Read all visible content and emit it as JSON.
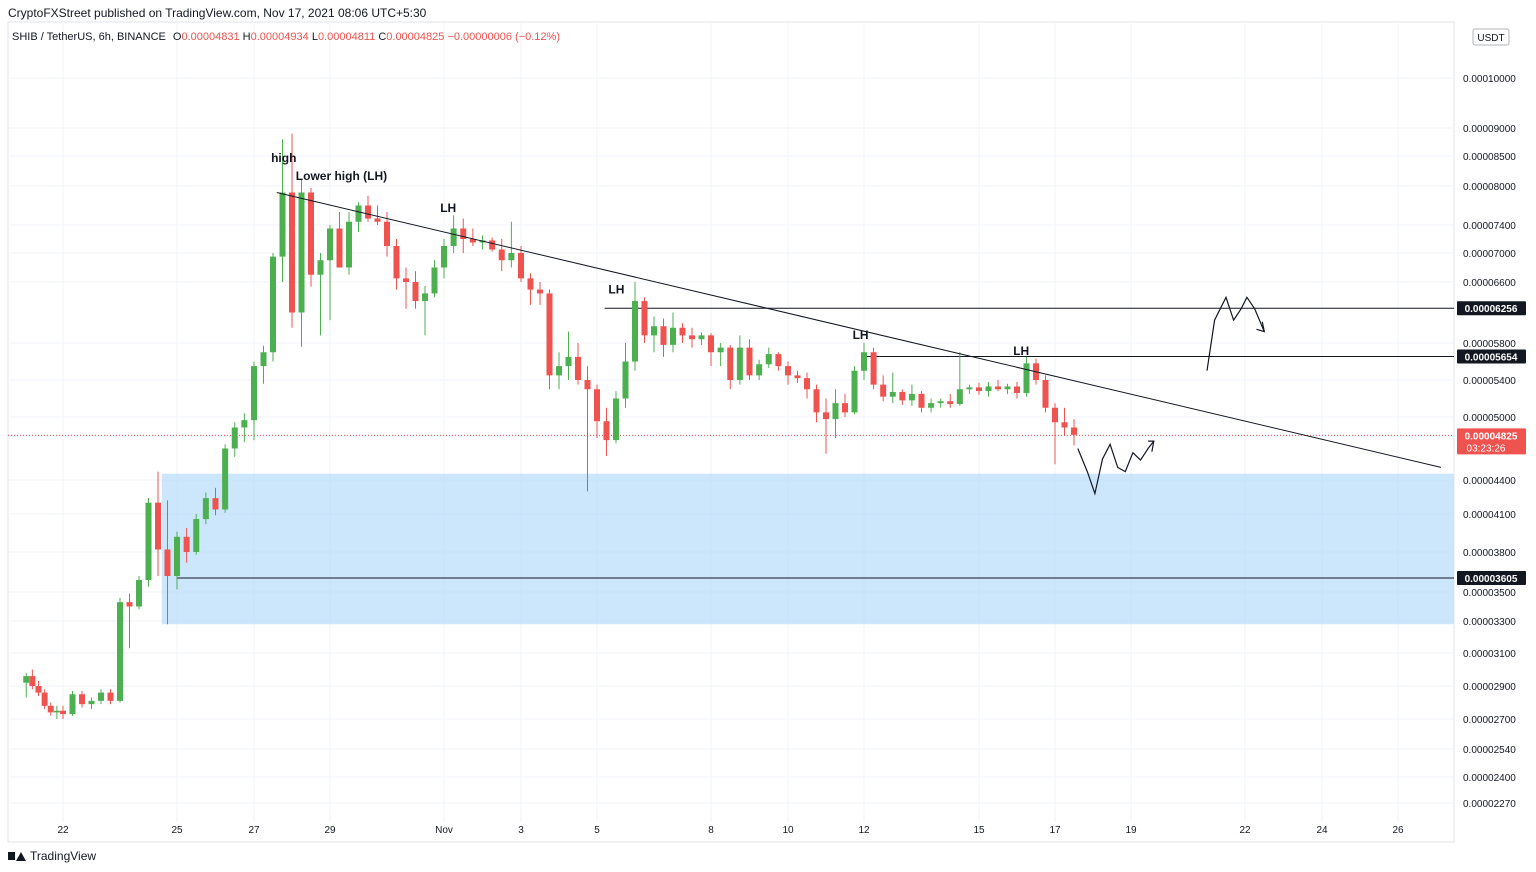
{
  "header": {
    "publisher": "CryptoFXStreet published on TradingView.com, Nov 17, 2021 08:06 UTC+5:30"
  },
  "ohlc": {
    "symbol": "SHIB / TetherUS, 6h, BINANCE",
    "o_label": "O",
    "o": "0.00004831",
    "h_label": "H",
    "h": "0.00004934",
    "l_label": "L",
    "l": "0.00004811",
    "c_label": "C",
    "c": "0.00004825",
    "change": "−0.00000006 (−0.12%)"
  },
  "footer": {
    "brand": "TradingView"
  },
  "colors": {
    "up": "#26a69a",
    "bull": "#4caf50",
    "down": "#ef5350",
    "zone": "#bbdefb",
    "line": "#131722"
  },
  "chart_data": {
    "type": "candlestick",
    "currency": "USDT",
    "y_ticks": [
      {
        "v": 0.0001,
        "label": "0.00010000"
      },
      {
        "v": 9e-05,
        "label": "0.00009000"
      },
      {
        "v": 8.5e-05,
        "label": "0.00008500"
      },
      {
        "v": 8e-05,
        "label": "0.00008000"
      },
      {
        "v": 7.4e-05,
        "label": "0.00007400"
      },
      {
        "v": 7e-05,
        "label": "0.00007000"
      },
      {
        "v": 6.6e-05,
        "label": "0.00006600"
      },
      {
        "v": 5.8e-05,
        "label": "0.00005800"
      },
      {
        "v": 5.4e-05,
        "label": "0.00005400"
      },
      {
        "v": 5e-05,
        "label": "0.00005000"
      },
      {
        "v": 4.4e-05,
        "label": "0.00004400"
      },
      {
        "v": 4.1e-05,
        "label": "0.00004100"
      },
      {
        "v": 3.8e-05,
        "label": "0.00003800"
      },
      {
        "v": 3.5e-05,
        "label": "0.00003500"
      },
      {
        "v": 3.3e-05,
        "label": "0.00003300"
      },
      {
        "v": 3.1e-05,
        "label": "0.00003100"
      },
      {
        "v": 2.9e-05,
        "label": "0.00002900"
      },
      {
        "v": 2.7e-05,
        "label": "0.00002700"
      },
      {
        "v": 2.54e-05,
        "label": "0.00002540"
      },
      {
        "v": 2.4e-05,
        "label": "0.00002400"
      },
      {
        "v": 2.27e-05,
        "label": "0.00002270"
      }
    ],
    "x_ticks": [
      {
        "t": 22,
        "label": "22"
      },
      {
        "t": 25,
        "label": "25"
      },
      {
        "t": 27,
        "label": "27"
      },
      {
        "t": 29,
        "label": "29"
      },
      {
        "t": 32,
        "label": "Nov"
      },
      {
        "t": 34,
        "label": "3"
      },
      {
        "t": 36,
        "label": "5"
      },
      {
        "t": 39,
        "label": "8"
      },
      {
        "t": 41,
        "label": "10"
      },
      {
        "t": 43,
        "label": "12"
      },
      {
        "t": 46,
        "label": "15"
      },
      {
        "t": 48,
        "label": "17"
      },
      {
        "t": 50,
        "label": "19"
      },
      {
        "t": 53,
        "label": "22"
      },
      {
        "t": 55,
        "label": "24"
      },
      {
        "t": 57,
        "label": "26"
      }
    ],
    "price_tags": [
      {
        "v": 6.256e-05,
        "label": "0.00006256",
        "style": "dark"
      },
      {
        "v": 5.654e-05,
        "label": "0.00005654",
        "style": "dark"
      },
      {
        "v": 4.825e-05,
        "label": "0.00004825",
        "style": "red",
        "sub": "03:23:26"
      },
      {
        "v": 3.605e-05,
        "label": "0.00003605",
        "style": "dark"
      }
    ],
    "last_price": 4.825e-05,
    "zone": {
      "top": 4.46e-05,
      "bottom": 3.28e-05,
      "t_start": 24.6
    },
    "horizontals": [
      {
        "v": 6.256e-05,
        "t_start": 36.2
      },
      {
        "v": 5.654e-05,
        "t_start": 43.0
      },
      {
        "v": 3.605e-05,
        "t_start": 25.0
      }
    ],
    "trendline": {
      "t1": 27.6,
      "v1": 7.9e-05,
      "t2": 59.3,
      "v2": 4.52e-05
    },
    "annotations": [
      {
        "text": "high",
        "t": 27.45,
        "v": 8.4e-05
      },
      {
        "text": "Lower high (LH)",
        "t": 28.1,
        "v": 8.1e-05
      },
      {
        "text": "LH",
        "t": 31.9,
        "v": 7.6e-05
      },
      {
        "text": "LH",
        "t": 36.3,
        "v": 6.45e-05
      },
      {
        "text": "LH",
        "t": 42.7,
        "v": 5.85e-05
      },
      {
        "text": "LH",
        "t": 46.9,
        "v": 5.67e-05
      }
    ],
    "projection_low": [
      [
        48.6,
        4.7e-05
      ],
      [
        48.85,
        4.48e-05
      ],
      [
        49.05,
        4.28e-05
      ],
      [
        49.25,
        4.6e-05
      ],
      [
        49.45,
        4.74e-05
      ],
      [
        49.65,
        4.52e-05
      ],
      [
        49.85,
        4.48e-05
      ],
      [
        50.05,
        4.66e-05
      ],
      [
        50.25,
        4.59e-05
      ],
      [
        50.45,
        4.7e-05
      ],
      [
        50.6,
        4.77e-05
      ]
    ],
    "projection_low_arrow": [
      [
        50.45,
        4.77e-05
      ],
      [
        50.6,
        4.77e-05
      ],
      [
        50.55,
        4.67e-05
      ]
    ],
    "projection_high": [
      [
        52.0,
        5.5e-05
      ],
      [
        52.2,
        6.1e-05
      ],
      [
        52.5,
        6.4e-05
      ],
      [
        52.7,
        6.1e-05
      ],
      [
        52.9,
        6.25e-05
      ],
      [
        53.05,
        6.4e-05
      ],
      [
        53.25,
        6.25e-05
      ],
      [
        53.5,
        5.95e-05
      ]
    ],
    "projection_high_arrow": [
      [
        53.3,
        5.98e-05
      ],
      [
        53.5,
        5.95e-05
      ],
      [
        53.45,
        6.08e-05
      ]
    ],
    "candles": [
      {
        "t": 20.5,
        "o": 2.92e-05,
        "h": 2.98e-05,
        "l": 2.83e-05,
        "c": 2.96e-05
      },
      {
        "t": 20.75,
        "o": 2.96e-05,
        "h": 3e-05,
        "l": 2.88e-05,
        "c": 2.9e-05
      },
      {
        "t": 21.0,
        "o": 2.9e-05,
        "h": 2.93e-05,
        "l": 2.84e-05,
        "c": 2.86e-05
      },
      {
        "t": 21.25,
        "o": 2.86e-05,
        "h": 2.88e-05,
        "l": 2.76e-05,
        "c": 2.78e-05
      },
      {
        "t": 21.5,
        "o": 2.78e-05,
        "h": 2.8e-05,
        "l": 2.72e-05,
        "c": 2.74e-05
      },
      {
        "t": 21.75,
        "o": 2.74e-05,
        "h": 2.78e-05,
        "l": 2.7e-05,
        "c": 2.75e-05
      },
      {
        "t": 22.0,
        "o": 2.75e-05,
        "h": 2.78e-05,
        "l": 2.7e-05,
        "c": 2.73e-05
      },
      {
        "t": 22.25,
        "o": 2.73e-05,
        "h": 2.87e-05,
        "l": 2.72e-05,
        "c": 2.85e-05
      },
      {
        "t": 22.5,
        "o": 2.85e-05,
        "h": 2.87e-05,
        "l": 2.77e-05,
        "c": 2.79e-05
      },
      {
        "t": 22.75,
        "o": 2.79e-05,
        "h": 2.83e-05,
        "l": 2.76e-05,
        "c": 2.81e-05
      },
      {
        "t": 23.0,
        "o": 2.81e-05,
        "h": 2.88e-05,
        "l": 2.79e-05,
        "c": 2.86e-05
      },
      {
        "t": 23.25,
        "o": 2.86e-05,
        "h": 2.88e-05,
        "l": 2.79e-05,
        "c": 2.81e-05
      },
      {
        "t": 23.5,
        "o": 2.81e-05,
        "h": 3.46e-05,
        "l": 2.8e-05,
        "c": 3.43e-05
      },
      {
        "t": 23.75,
        "o": 3.43e-05,
        "h": 3.49e-05,
        "l": 3.13e-05,
        "c": 3.4e-05
      },
      {
        "t": 24.0,
        "o": 3.4e-05,
        "h": 3.62e-05,
        "l": 3.38e-05,
        "c": 3.59e-05
      },
      {
        "t": 24.25,
        "o": 3.59e-05,
        "h": 4.24e-05,
        "l": 3.54e-05,
        "c": 4.2e-05
      },
      {
        "t": 24.5,
        "o": 4.2e-05,
        "h": 4.48e-05,
        "l": 3.62e-05,
        "c": 3.82e-05
      },
      {
        "t": 24.75,
        "o": 3.82e-05,
        "h": 4.22e-05,
        "l": 3.28e-05,
        "c": 3.62e-05
      },
      {
        "t": 25.0,
        "o": 3.62e-05,
        "h": 3.96e-05,
        "l": 3.52e-05,
        "c": 3.92e-05
      },
      {
        "t": 25.25,
        "o": 3.92e-05,
        "h": 3.99e-05,
        "l": 3.72e-05,
        "c": 3.8e-05
      },
      {
        "t": 25.5,
        "o": 3.8e-05,
        "h": 4.1e-05,
        "l": 3.78e-05,
        "c": 4.06e-05
      },
      {
        "t": 25.75,
        "o": 4.06e-05,
        "h": 4.29e-05,
        "l": 4.02e-05,
        "c": 4.24e-05
      },
      {
        "t": 26.0,
        "o": 4.24e-05,
        "h": 4.33e-05,
        "l": 4.09e-05,
        "c": 4.14e-05
      },
      {
        "t": 26.25,
        "o": 4.14e-05,
        "h": 4.74e-05,
        "l": 4.11e-05,
        "c": 4.7e-05
      },
      {
        "t": 26.5,
        "o": 4.7e-05,
        "h": 4.95e-05,
        "l": 4.62e-05,
        "c": 4.9e-05
      },
      {
        "t": 26.75,
        "o": 4.9e-05,
        "h": 5.04e-05,
        "l": 4.76e-05,
        "c": 4.97e-05
      },
      {
        "t": 27.0,
        "o": 4.97e-05,
        "h": 5.6e-05,
        "l": 4.78e-05,
        "c": 5.55e-05
      },
      {
        "t": 27.25,
        "o": 5.55e-05,
        "h": 5.77e-05,
        "l": 5.36e-05,
        "c": 5.7e-05
      },
      {
        "t": 27.5,
        "o": 5.7e-05,
        "h": 7e-05,
        "l": 5.6e-05,
        "c": 6.95e-05
      },
      {
        "t": 27.75,
        "o": 6.95e-05,
        "h": 8.8e-05,
        "l": 6.6e-05,
        "c": 7.9e-05
      },
      {
        "t": 28.0,
        "o": 7.9e-05,
        "h": 8.9e-05,
        "l": 6e-05,
        "c": 6.2e-05
      },
      {
        "t": 28.25,
        "o": 6.2e-05,
        "h": 8.1e-05,
        "l": 5.76e-05,
        "c": 7.9e-05
      },
      {
        "t": 28.5,
        "o": 7.9e-05,
        "h": 7.97e-05,
        "l": 6.54e-05,
        "c": 6.7e-05
      },
      {
        "t": 28.75,
        "o": 6.7e-05,
        "h": 7e-05,
        "l": 5.9e-05,
        "c": 6.9e-05
      },
      {
        "t": 29.0,
        "o": 6.9e-05,
        "h": 7.4e-05,
        "l": 6.1e-05,
        "c": 7.35e-05
      },
      {
        "t": 29.25,
        "o": 7.35e-05,
        "h": 7.6e-05,
        "l": 6.8e-05,
        "c": 6.8e-05
      },
      {
        "t": 29.5,
        "o": 6.8e-05,
        "h": 7.6e-05,
        "l": 6.7e-05,
        "c": 7.45e-05
      },
      {
        "t": 29.75,
        "o": 7.45e-05,
        "h": 7.75e-05,
        "l": 7.3e-05,
        "c": 7.7e-05
      },
      {
        "t": 30.0,
        "o": 7.7e-05,
        "h": 7.85e-05,
        "l": 7.45e-05,
        "c": 7.5e-05
      },
      {
        "t": 30.25,
        "o": 7.5e-05,
        "h": 7.7e-05,
        "l": 7.4e-05,
        "c": 7.45e-05
      },
      {
        "t": 30.5,
        "o": 7.45e-05,
        "h": 7.6e-05,
        "l": 6.95e-05,
        "c": 7.1e-05
      },
      {
        "t": 30.75,
        "o": 7.1e-05,
        "h": 7.2e-05,
        "l": 6.5e-05,
        "c": 6.65e-05
      },
      {
        "t": 31.0,
        "o": 6.65e-05,
        "h": 6.8e-05,
        "l": 6.25e-05,
        "c": 6.6e-05
      },
      {
        "t": 31.25,
        "o": 6.6e-05,
        "h": 6.75e-05,
        "l": 6.25e-05,
        "c": 6.35e-05
      },
      {
        "t": 31.5,
        "o": 6.35e-05,
        "h": 6.55e-05,
        "l": 5.9e-05,
        "c": 6.45e-05
      },
      {
        "t": 31.75,
        "o": 6.45e-05,
        "h": 6.9e-05,
        "l": 6.4e-05,
        "c": 6.8e-05
      },
      {
        "t": 32.0,
        "o": 6.8e-05,
        "h": 7.2e-05,
        "l": 6.65e-05,
        "c": 7.1e-05
      },
      {
        "t": 32.25,
        "o": 7.1e-05,
        "h": 7.55e-05,
        "l": 7e-05,
        "c": 7.35e-05
      },
      {
        "t": 32.5,
        "o": 7.35e-05,
        "h": 7.5e-05,
        "l": 7e-05,
        "c": 7.2e-05
      },
      {
        "t": 32.75,
        "o": 7.2e-05,
        "h": 7.35e-05,
        "l": 7.1e-05,
        "c": 7.15e-05
      },
      {
        "t": 33.0,
        "o": 7.15e-05,
        "h": 7.25e-05,
        "l": 7.05e-05,
        "c": 7.18e-05
      },
      {
        "t": 33.25,
        "o": 7.18e-05,
        "h": 7.22e-05,
        "l": 7.02e-05,
        "c": 7.05e-05
      },
      {
        "t": 33.5,
        "o": 7.05e-05,
        "h": 7.2e-05,
        "l": 6.75e-05,
        "c": 6.9e-05
      },
      {
        "t": 33.75,
        "o": 6.9e-05,
        "h": 7.45e-05,
        "l": 6.8e-05,
        "c": 7e-05
      },
      {
        "t": 34.0,
        "o": 7e-05,
        "h": 7.1e-05,
        "l": 6.6e-05,
        "c": 6.65e-05
      },
      {
        "t": 34.25,
        "o": 6.65e-05,
        "h": 6.72e-05,
        "l": 6.3e-05,
        "c": 6.5e-05
      },
      {
        "t": 34.5,
        "o": 6.5e-05,
        "h": 6.6e-05,
        "l": 6.3e-05,
        "c": 6.45e-05
      },
      {
        "t": 34.75,
        "o": 6.45e-05,
        "h": 6.5e-05,
        "l": 5.3e-05,
        "c": 5.45e-05
      },
      {
        "t": 35.0,
        "o": 5.45e-05,
        "h": 5.7e-05,
        "l": 5.3e-05,
        "c": 5.55e-05
      },
      {
        "t": 35.25,
        "o": 5.55e-05,
        "h": 5.95e-05,
        "l": 5.4e-05,
        "c": 5.65e-05
      },
      {
        "t": 35.5,
        "o": 5.65e-05,
        "h": 5.8e-05,
        "l": 5.35e-05,
        "c": 5.4e-05
      },
      {
        "t": 35.75,
        "o": 5.4e-05,
        "h": 5.55e-05,
        "l": 4.3e-05,
        "c": 5.3e-05
      },
      {
        "t": 36.0,
        "o": 5.3e-05,
        "h": 5.35e-05,
        "l": 4.8e-05,
        "c": 4.96e-05
      },
      {
        "t": 36.25,
        "o": 4.96e-05,
        "h": 5.1e-05,
        "l": 4.63e-05,
        "c": 4.78e-05
      },
      {
        "t": 36.5,
        "o": 4.78e-05,
        "h": 5.28e-05,
        "l": 4.75e-05,
        "c": 5.2e-05
      },
      {
        "t": 36.75,
        "o": 5.2e-05,
        "h": 5.8e-05,
        "l": 5.1e-05,
        "c": 5.6e-05
      },
      {
        "t": 37.0,
        "o": 5.6e-05,
        "h": 6.6e-05,
        "l": 5.5e-05,
        "c": 6.35e-05
      },
      {
        "t": 37.25,
        "o": 6.35e-05,
        "h": 6.4e-05,
        "l": 5.8e-05,
        "c": 5.9e-05
      },
      {
        "t": 37.5,
        "o": 5.9e-05,
        "h": 6.15e-05,
        "l": 5.7e-05,
        "c": 6.02e-05
      },
      {
        "t": 37.75,
        "o": 6.02e-05,
        "h": 6.12e-05,
        "l": 5.65e-05,
        "c": 5.78e-05
      },
      {
        "t": 38.0,
        "o": 5.78e-05,
        "h": 6.2e-05,
        "l": 5.7e-05,
        "c": 6e-05
      },
      {
        "t": 38.25,
        "o": 6e-05,
        "h": 6.06e-05,
        "l": 5.8e-05,
        "c": 5.9e-05
      },
      {
        "t": 38.5,
        "o": 5.9e-05,
        "h": 6e-05,
        "l": 5.75e-05,
        "c": 5.85e-05
      },
      {
        "t": 38.75,
        "o": 5.85e-05,
        "h": 5.94e-05,
        "l": 5.78e-05,
        "c": 5.9e-05
      },
      {
        "t": 39.0,
        "o": 5.9e-05,
        "h": 5.93e-05,
        "l": 5.55e-05,
        "c": 5.7e-05
      },
      {
        "t": 39.25,
        "o": 5.7e-05,
        "h": 5.8e-05,
        "l": 5.55e-05,
        "c": 5.75e-05
      },
      {
        "t": 39.5,
        "o": 5.75e-05,
        "h": 5.78e-05,
        "l": 5.3e-05,
        "c": 5.4e-05
      },
      {
        "t": 39.75,
        "o": 5.4e-05,
        "h": 5.9e-05,
        "l": 5.35e-05,
        "c": 5.75e-05
      },
      {
        "t": 40.0,
        "o": 5.75e-05,
        "h": 5.85e-05,
        "l": 5.4e-05,
        "c": 5.45e-05
      },
      {
        "t": 40.25,
        "o": 5.45e-05,
        "h": 5.62e-05,
        "l": 5.4e-05,
        "c": 5.57e-05
      },
      {
        "t": 40.5,
        "o": 5.57e-05,
        "h": 5.75e-05,
        "l": 5.53e-05,
        "c": 5.68e-05
      },
      {
        "t": 40.75,
        "o": 5.68e-05,
        "h": 5.7e-05,
        "l": 5.5e-05,
        "c": 5.55e-05
      },
      {
        "t": 41.0,
        "o": 5.55e-05,
        "h": 5.6e-05,
        "l": 5.35e-05,
        "c": 5.45e-05
      },
      {
        "t": 41.25,
        "o": 5.45e-05,
        "h": 5.5e-05,
        "l": 5.37e-05,
        "c": 5.42e-05
      },
      {
        "t": 41.5,
        "o": 5.42e-05,
        "h": 5.48e-05,
        "l": 5.2e-05,
        "c": 5.3e-05
      },
      {
        "t": 41.75,
        "o": 5.3e-05,
        "h": 5.35e-05,
        "l": 4.95e-05,
        "c": 5.05e-05
      },
      {
        "t": 42.0,
        "o": 5.05e-05,
        "h": 5.2e-05,
        "l": 4.65e-05,
        "c": 4.98e-05
      },
      {
        "t": 42.25,
        "o": 4.98e-05,
        "h": 5.3e-05,
        "l": 4.8e-05,
        "c": 5.15e-05
      },
      {
        "t": 42.5,
        "o": 5.15e-05,
        "h": 5.25e-05,
        "l": 5e-05,
        "c": 5.05e-05
      },
      {
        "t": 42.75,
        "o": 5.05e-05,
        "h": 5.55e-05,
        "l": 5.03e-05,
        "c": 5.5e-05
      },
      {
        "t": 43.0,
        "o": 5.5e-05,
        "h": 5.8e-05,
        "l": 5.4e-05,
        "c": 5.7e-05
      },
      {
        "t": 43.25,
        "o": 5.7e-05,
        "h": 5.75e-05,
        "l": 5.3e-05,
        "c": 5.35e-05
      },
      {
        "t": 43.5,
        "o": 5.35e-05,
        "h": 5.45e-05,
        "l": 5.17e-05,
        "c": 5.22e-05
      },
      {
        "t": 43.75,
        "o": 5.22e-05,
        "h": 5.48e-05,
        "l": 5.15e-05,
        "c": 5.27e-05
      },
      {
        "t": 44.0,
        "o": 5.27e-05,
        "h": 5.3e-05,
        "l": 5.13e-05,
        "c": 5.18e-05
      },
      {
        "t": 44.25,
        "o": 5.18e-05,
        "h": 5.35e-05,
        "l": 5.12e-05,
        "c": 5.25e-05
      },
      {
        "t": 44.5,
        "o": 5.25e-05,
        "h": 5.28e-05,
        "l": 5.05e-05,
        "c": 5.1e-05
      },
      {
        "t": 44.75,
        "o": 5.1e-05,
        "h": 5.2e-05,
        "l": 5.05e-05,
        "c": 5.15e-05
      },
      {
        "t": 45.0,
        "o": 5.15e-05,
        "h": 5.2e-05,
        "l": 5.1e-05,
        "c": 5.17e-05
      },
      {
        "t": 45.25,
        "o": 5.17e-05,
        "h": 5.25e-05,
        "l": 5.1e-05,
        "c": 5.14e-05
      },
      {
        "t": 45.5,
        "o": 5.14e-05,
        "h": 5.7e-05,
        "l": 5.12e-05,
        "c": 5.3e-05
      },
      {
        "t": 45.75,
        "o": 5.3e-05,
        "h": 5.35e-05,
        "l": 5.25e-05,
        "c": 5.32e-05
      },
      {
        "t": 46.0,
        "o": 5.32e-05,
        "h": 5.37e-05,
        "l": 5.24e-05,
        "c": 5.28e-05
      },
      {
        "t": 46.25,
        "o": 5.28e-05,
        "h": 5.38e-05,
        "l": 5.22e-05,
        "c": 5.33e-05
      },
      {
        "t": 46.5,
        "o": 5.33e-05,
        "h": 5.4e-05,
        "l": 5.28e-05,
        "c": 5.3e-05
      },
      {
        "t": 46.75,
        "o": 5.3e-05,
        "h": 5.36e-05,
        "l": 5.25e-05,
        "c": 5.33e-05
      },
      {
        "t": 47.0,
        "o": 5.33e-05,
        "h": 5.38e-05,
        "l": 5.2e-05,
        "c": 5.26e-05
      },
      {
        "t": 47.25,
        "o": 5.26e-05,
        "h": 5.65e-05,
        "l": 5.22e-05,
        "c": 5.58e-05
      },
      {
        "t": 47.5,
        "o": 5.58e-05,
        "h": 5.63e-05,
        "l": 5.35e-05,
        "c": 5.4e-05
      },
      {
        "t": 47.75,
        "o": 5.4e-05,
        "h": 5.45e-05,
        "l": 5.05e-05,
        "c": 5.1e-05
      },
      {
        "t": 48.0,
        "o": 5.1e-05,
        "h": 5.15e-05,
        "l": 4.55e-05,
        "c": 4.95e-05
      },
      {
        "t": 48.25,
        "o": 4.95e-05,
        "h": 5.1e-05,
        "l": 4.82e-05,
        "c": 4.9e-05
      },
      {
        "t": 48.5,
        "o": 4.9e-05,
        "h": 4.98e-05,
        "l": 4.73e-05,
        "c": 4.83e-05
      }
    ]
  }
}
